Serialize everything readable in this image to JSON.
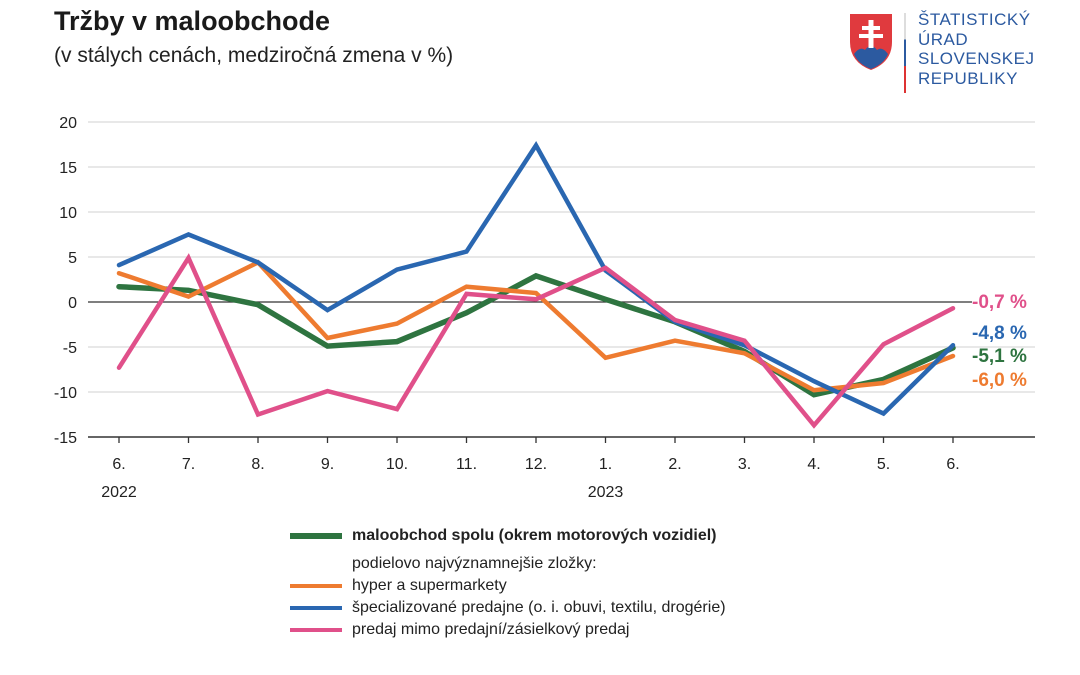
{
  "header": {
    "title": "Tržby v maloobchode",
    "subtitle": "(v stálych cenách, medziročná zmena v %)"
  },
  "logo": {
    "lines": [
      "ŠTATISTICKÝ",
      "ÚRAD",
      "SLOVENSKEJ",
      "REPUBLIKY"
    ]
  },
  "chart_data": {
    "type": "line",
    "title": "Tržby v maloobchode",
    "subtitle": "(v stálych cenách, medziročná zmena v %)",
    "categories": [
      "6.",
      "7.",
      "8.",
      "9.",
      "10.",
      "11.",
      "12.",
      "1.",
      "2.",
      "3.",
      "4.",
      "5.",
      "6."
    ],
    "year_labels": [
      {
        "index": 0,
        "label": "2022"
      },
      {
        "index": 7,
        "label": "2023"
      }
    ],
    "ylim": [
      -15,
      20
    ],
    "yticks": [
      20,
      15,
      10,
      5,
      0,
      -5,
      -10,
      -15
    ],
    "grid": true,
    "legend_position": "bottom",
    "legend_subheading": "podielovo najvýznamnejšie zložky:",
    "series": [
      {
        "name": "maloobchod spolu (okrem motorových vozidiel)",
        "color": "#2e7440",
        "values": [
          1.7,
          1.3,
          -0.3,
          -4.9,
          -4.4,
          -1.2,
          2.9,
          0.3,
          -2.2,
          -5.5,
          -10.3,
          -8.6,
          -5.1
        ],
        "end_label": "-5,1 %"
      },
      {
        "name": "hyper a supermarkety",
        "color": "#ee7b30",
        "values": [
          3.2,
          0.6,
          4.4,
          -4.0,
          -2.4,
          1.7,
          1.0,
          -6.2,
          -4.3,
          -5.7,
          -9.8,
          -9.0,
          -6.0
        ],
        "end_label": "-6,0 %"
      },
      {
        "name": "špecializované predajne (o. i. obuvi, textilu, drogérie)",
        "color": "#2a67b1",
        "values": [
          4.1,
          7.5,
          4.4,
          -0.9,
          3.6,
          5.6,
          17.4,
          3.5,
          -2.2,
          -4.8,
          -8.8,
          -12.4,
          -4.8
        ],
        "end_label": "-4,8 %"
      },
      {
        "name": "predaj mimo predajní/zásielkový predaj",
        "color": "#e0508a",
        "values": [
          -7.3,
          4.9,
          -12.5,
          -9.9,
          -11.9,
          0.9,
          0.3,
          3.8,
          -2.0,
          -4.3,
          -13.7,
          -4.7,
          -0.7
        ],
        "end_label": "-0,7 %"
      }
    ]
  }
}
